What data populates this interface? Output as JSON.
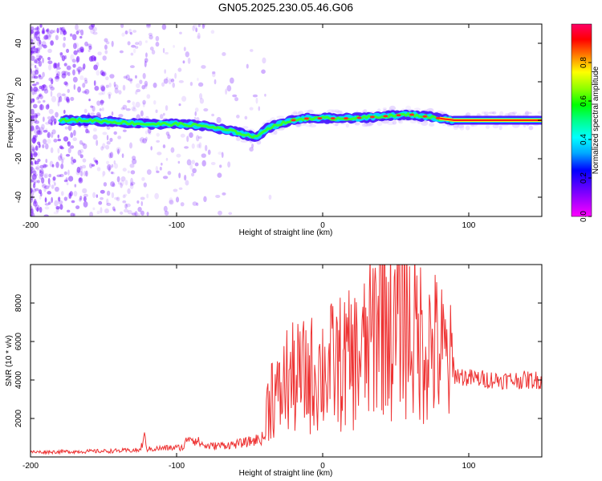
{
  "title": "GN05.2025.230.05.46.G06",
  "colors": {
    "snr_line": "#ee3333",
    "track_center": "#ff1a1a",
    "scatter": "#7a1bff"
  },
  "chart_data": [
    {
      "type": "heatmap",
      "xlabel": "Height of straight line (km)",
      "ylabel": "Frequency (Hz)",
      "xlim": [
        -200,
        150
      ],
      "ylim": [
        -50,
        50
      ],
      "xticks": [
        "-200",
        "-100",
        "0",
        "100"
      ],
      "yticks": [
        "-40",
        "-20",
        "0",
        "20",
        "40"
      ],
      "colorbar": {
        "label": "Normalized spectral amplitude",
        "range": [
          0.0,
          1.0
        ],
        "ticks": [
          "0.0",
          "0.2",
          "0.4",
          "0.6",
          "0.8"
        ],
        "colormap": [
          "#ff00ff",
          "#aa00ff",
          "#5500ff",
          "#0000ff",
          "#00aaff",
          "#00ffff",
          "#00ff88",
          "#00ff00",
          "#88ff00",
          "#ffff00",
          "#ff8800",
          "#ff0000",
          "#ff0066"
        ]
      },
      "frequency_track": {
        "x": [
          -200,
          -180,
          -160,
          -140,
          -120,
          -100,
          -80,
          -60,
          -50,
          -45,
          -40,
          -30,
          -20,
          -10,
          0,
          10,
          20,
          40,
          60,
          80,
          90,
          100,
          150
        ],
        "y": [
          0,
          0,
          0,
          -1,
          -2,
          -2,
          -3,
          -6,
          -8,
          -9,
          -5,
          -2,
          0,
          1,
          1,
          1,
          1,
          2,
          3,
          1,
          0,
          0,
          0
        ]
      }
    },
    {
      "type": "line",
      "xlabel": "Height of straight line (km)",
      "ylabel": "SNR (10 * v/v)",
      "xlim": [
        -200,
        150
      ],
      "ylim": [
        0,
        10000
      ],
      "xticks": [
        "-200",
        "-100",
        "0",
        "100"
      ],
      "yticks": [
        "2000",
        "4000",
        "6000",
        "8000"
      ],
      "series": [
        {
          "x": [
            -200,
            -150,
            -125,
            -122,
            -120,
            -110,
            -95,
            -92,
            -80,
            -60,
            -50,
            -40,
            -38,
            -35,
            -30,
            -25,
            -20,
            -10,
            0,
            10,
            20,
            30,
            35,
            40,
            50,
            55,
            57,
            60,
            70,
            80,
            90,
            100,
            120,
            150
          ],
          "y": [
            250,
            300,
            350,
            1000,
            400,
            450,
            500,
            1100,
            550,
            650,
            800,
            1000,
            2500,
            3500,
            3000,
            4000,
            4000,
            4200,
            4500,
            4800,
            5000,
            5500,
            6500,
            8500,
            6000,
            9500,
            7000,
            6500,
            6000,
            5500,
            4300,
            4100,
            4000,
            4000
          ]
        }
      ]
    }
  ]
}
